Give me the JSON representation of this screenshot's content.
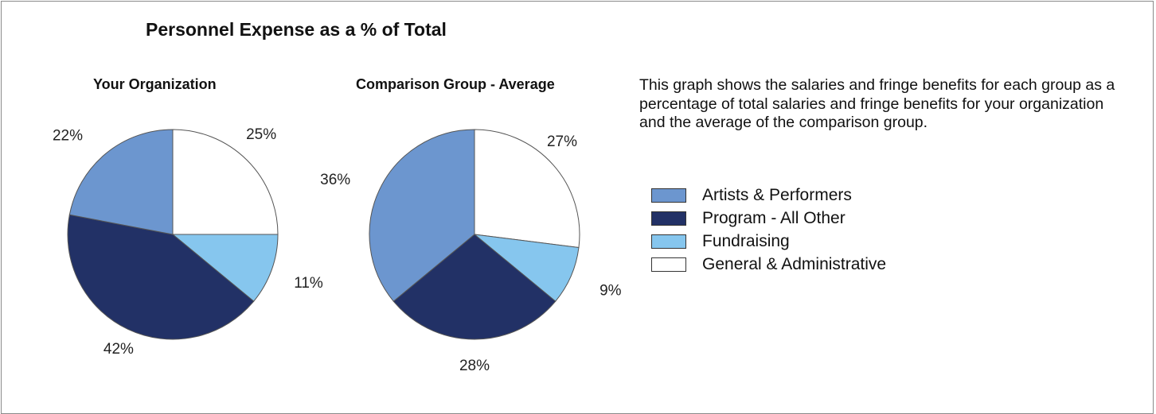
{
  "colors": {
    "artists": "#6c96cf",
    "program": "#223166",
    "fundraising": "#86c6ee",
    "general": "#ffffff",
    "border": "#555555"
  },
  "chart_data": {
    "type": "pie",
    "title": "Personnel Expense as a % of Total",
    "legend_position": "right",
    "legend": [
      {
        "key": "artists",
        "label": "Artists & Performers"
      },
      {
        "key": "program",
        "label": "Program - All Other"
      },
      {
        "key": "fundraising",
        "label": "Fundraising"
      },
      {
        "key": "general",
        "label": "General & Administrative"
      }
    ],
    "pies": [
      {
        "title": "Your Organization",
        "slices": [
          {
            "key": "general",
            "value": 25,
            "label": "25%"
          },
          {
            "key": "fundraising",
            "value": 11,
            "label": "11%"
          },
          {
            "key": "program",
            "value": 42,
            "label": "42%"
          },
          {
            "key": "artists",
            "value": 22,
            "label": "22%"
          }
        ]
      },
      {
        "title": "Comparison Group - Average",
        "slices": [
          {
            "key": "general",
            "value": 27,
            "label": "27%"
          },
          {
            "key": "fundraising",
            "value": 9,
            "label": "9%"
          },
          {
            "key": "program",
            "value": 28,
            "label": "28%"
          },
          {
            "key": "artists",
            "value": 36,
            "label": "36%"
          }
        ]
      }
    ]
  },
  "description": "This graph shows the salaries and fringe benefits for each group as a percentage of total salaries and fringe benefits for your organization and the average of the comparison group."
}
